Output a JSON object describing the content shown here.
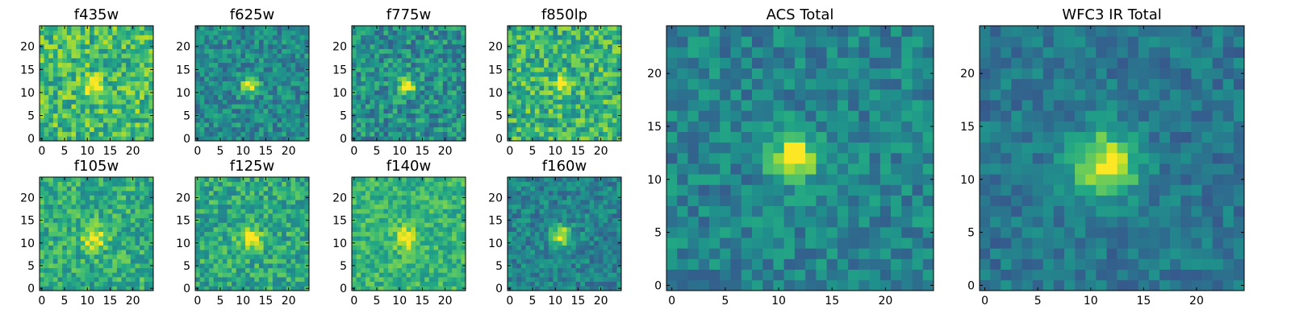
{
  "chart_data": {
    "type": "heatmap",
    "colormap": "viridis",
    "grid_size": 25,
    "panels": [
      {
        "id": "f435w",
        "title": "f435w",
        "xticks": [
          0,
          5,
          10,
          15,
          20
        ],
        "yticks": [
          0,
          5,
          10,
          15,
          20
        ],
        "xlim": [
          -0.5,
          24.5
        ],
        "ylim": [
          -0.5,
          24.5
        ],
        "source": {
          "cx": 11.5,
          "cy": 11.5,
          "sigma": 1.3,
          "amp": 0.45
        },
        "background": 0.68,
        "noise": 0.22,
        "seed": 11
      },
      {
        "id": "f625w",
        "title": "f625w",
        "xticks": [
          0,
          5,
          10,
          15,
          20
        ],
        "yticks": [
          0,
          5,
          10,
          15,
          20
        ],
        "xlim": [
          -0.5,
          24.5
        ],
        "ylim": [
          -0.5,
          24.5
        ],
        "source": {
          "cx": 11.5,
          "cy": 11.5,
          "sigma": 1.3,
          "amp": 0.55
        },
        "background": 0.48,
        "noise": 0.17,
        "seed": 23
      },
      {
        "id": "f775w",
        "title": "f775w",
        "xticks": [
          0,
          5,
          10,
          15,
          20
        ],
        "yticks": [
          0,
          5,
          10,
          15,
          20
        ],
        "xlim": [
          -0.5,
          24.5
        ],
        "ylim": [
          -0.5,
          24.5
        ],
        "source": {
          "cx": 11.5,
          "cy": 11.5,
          "sigma": 1.3,
          "amp": 0.55
        },
        "background": 0.5,
        "noise": 0.2,
        "seed": 37
      },
      {
        "id": "f850lp",
        "title": "f850lp",
        "xticks": [
          0,
          5,
          10,
          15,
          20
        ],
        "yticks": [
          0,
          5,
          10,
          15,
          20
        ],
        "xlim": [
          -0.5,
          24.5
        ],
        "ylim": [
          -0.5,
          24.5
        ],
        "source": {
          "cx": 11.5,
          "cy": 12,
          "sigma": 1.4,
          "amp": 0.35
        },
        "background": 0.65,
        "noise": 0.22,
        "seed": 41
      },
      {
        "id": "f105w",
        "title": "f105w",
        "xticks": [
          0,
          5,
          10,
          15,
          20
        ],
        "yticks": [
          0,
          5,
          10,
          15,
          20
        ],
        "xlim": [
          -0.5,
          24.5
        ],
        "ylim": [
          -0.5,
          24.5
        ],
        "source": {
          "cx": 11.5,
          "cy": 11,
          "sigma": 1.8,
          "amp": 0.4
        },
        "background": 0.62,
        "noise": 0.18,
        "seed": 53
      },
      {
        "id": "f125w",
        "title": "f125w",
        "xticks": [
          0,
          5,
          10,
          15,
          20
        ],
        "yticks": [
          0,
          5,
          10,
          15,
          20
        ],
        "xlim": [
          -0.5,
          24.5
        ],
        "ylim": [
          -0.5,
          24.5
        ],
        "source": {
          "cx": 11.5,
          "cy": 11,
          "sigma": 1.8,
          "amp": 0.4
        },
        "background": 0.6,
        "noise": 0.18,
        "seed": 67
      },
      {
        "id": "f140w",
        "title": "f140w",
        "xticks": [
          0,
          5,
          10,
          15,
          20
        ],
        "yticks": [
          0,
          5,
          10,
          15,
          20
        ],
        "xlim": [
          -0.5,
          24.5
        ],
        "ylim": [
          -0.5,
          24.5
        ],
        "source": {
          "cx": 11.5,
          "cy": 11,
          "sigma": 1.8,
          "amp": 0.35
        },
        "background": 0.65,
        "noise": 0.15,
        "seed": 71
      },
      {
        "id": "f160w",
        "title": "f160w",
        "xticks": [
          0,
          5,
          10,
          15,
          20
        ],
        "yticks": [
          0,
          5,
          10,
          15,
          20
        ],
        "xlim": [
          -0.5,
          24.5
        ],
        "ylim": [
          -0.5,
          24.5
        ],
        "source": {
          "cx": 11.5,
          "cy": 11.5,
          "sigma": 1.6,
          "amp": 0.55
        },
        "background": 0.45,
        "noise": 0.15,
        "seed": 83
      },
      {
        "id": "acs-total",
        "title": "ACS Total",
        "xticks": [
          0,
          5,
          10,
          15,
          20
        ],
        "yticks": [
          0,
          5,
          10,
          15,
          20
        ],
        "xlim": [
          -0.5,
          24.5
        ],
        "ylim": [
          -0.5,
          24.5
        ],
        "source": {
          "cx": 11.5,
          "cy": 12,
          "sigma": 1.5,
          "amp": 0.6
        },
        "background": 0.45,
        "noise": 0.15,
        "seed": 97
      },
      {
        "id": "wfc3-ir-total",
        "title": "WFC3 IR Total",
        "xticks": [
          0,
          5,
          10,
          15,
          20
        ],
        "yticks": [
          0,
          5,
          10,
          15,
          20
        ],
        "xlim": [
          -0.5,
          24.5
        ],
        "ylim": [
          -0.5,
          24.5
        ],
        "source": {
          "cx": 11.5,
          "cy": 11.5,
          "sigma": 2.1,
          "amp": 0.6
        },
        "background": 0.4,
        "noise": 0.12,
        "seed": 101
      }
    ]
  }
}
